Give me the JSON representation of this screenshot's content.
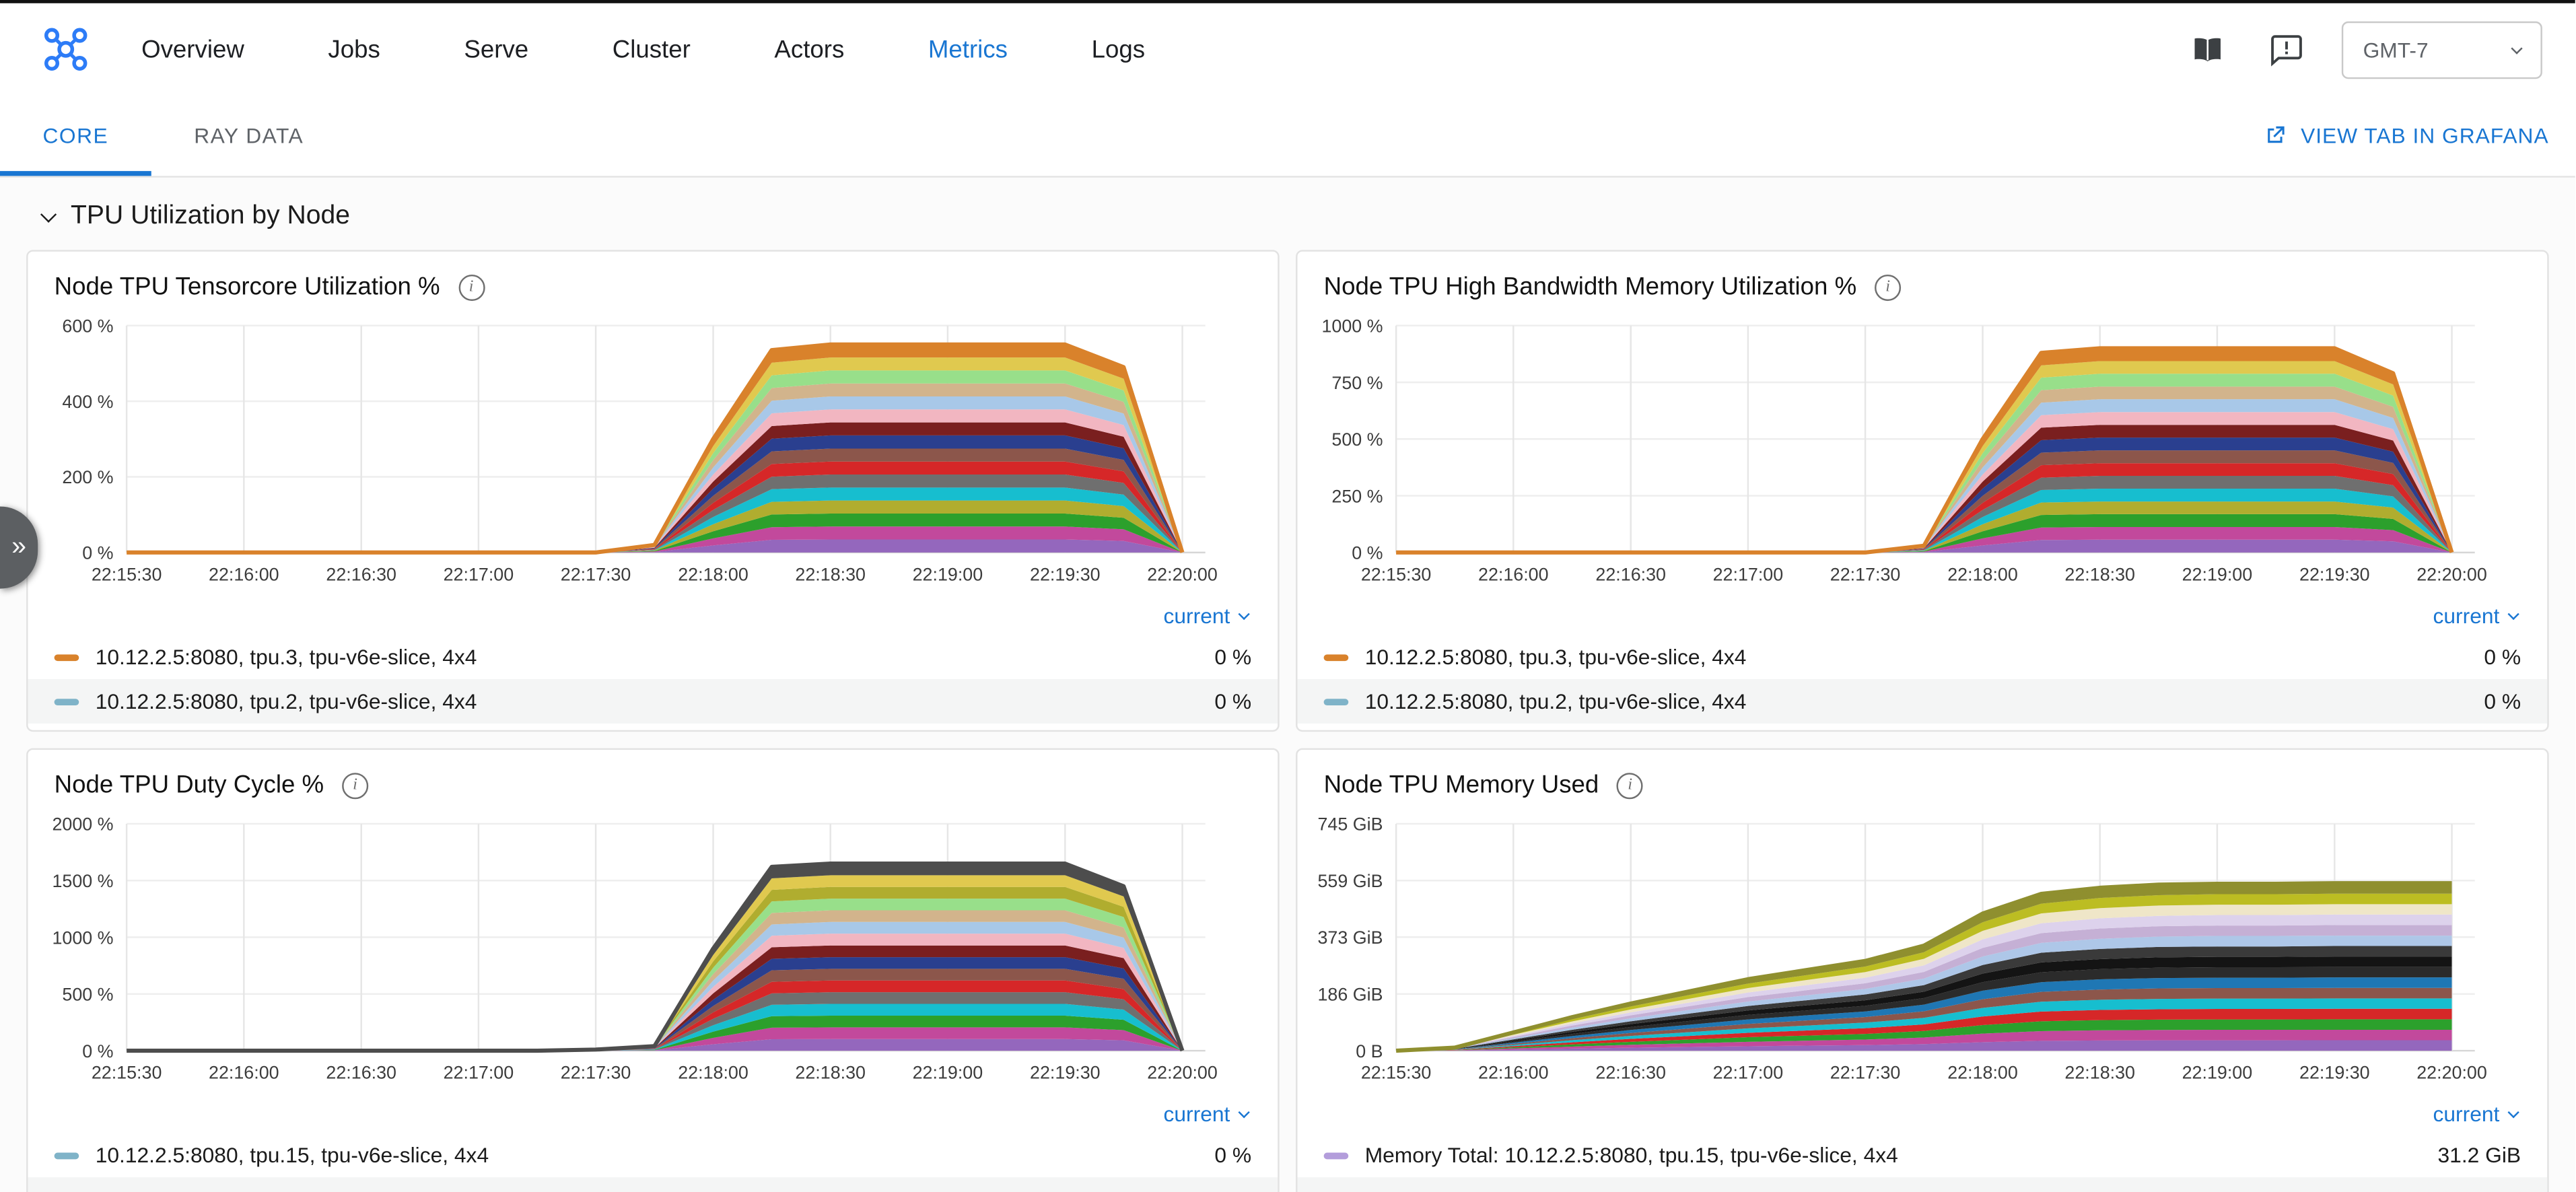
{
  "nav": {
    "items": [
      "Overview",
      "Jobs",
      "Serve",
      "Cluster",
      "Actors",
      "Metrics",
      "Logs"
    ],
    "active": "Metrics",
    "timezone": "GMT-7"
  },
  "tabs": {
    "core": "CORE",
    "ray_data": "RAY DATA",
    "grafana_link": "VIEW TAB IN GRAFANA"
  },
  "section": {
    "title": "TPU Utilization by Node"
  },
  "icons": {
    "info_glyph": "i",
    "drawer_glyph": "»"
  },
  "panels": [
    {
      "title": "Node TPU Tensorcore Utilization %",
      "legend_header": "current",
      "legend": [
        {
          "color": "#d9822b",
          "label": "10.12.2.5:8080, tpu.3, tpu-v6e-slice, 4x4",
          "value": "0 %"
        },
        {
          "color": "#7fb3c8",
          "label": "10.12.2.5:8080, tpu.2, tpu-v6e-slice, 4x4",
          "value": "0 %"
        }
      ]
    },
    {
      "title": "Node TPU High Bandwidth Memory Utilization %",
      "legend_header": "current",
      "legend": [
        {
          "color": "#d9822b",
          "label": "10.12.2.5:8080, tpu.3, tpu-v6e-slice, 4x4",
          "value": "0 %"
        },
        {
          "color": "#7fb3c8",
          "label": "10.12.2.5:8080, tpu.2, tpu-v6e-slice, 4x4",
          "value": "0 %"
        }
      ]
    },
    {
      "title": "Node TPU Duty Cycle %",
      "legend_header": "current",
      "legend": [
        {
          "color": "#7fb3c8",
          "label": "10.12.2.5:8080, tpu.15, tpu-v6e-slice, 4x4",
          "value": "0 %"
        }
      ]
    },
    {
      "title": "Node TPU Memory Used",
      "legend_header": "current",
      "legend": [
        {
          "color": "#b39ddb",
          "label": "Memory Total: 10.12.2.5:8080, tpu.15, tpu-v6e-slice, 4x4",
          "value": "31.2 GiB"
        }
      ]
    }
  ],
  "chart_data": [
    {
      "type": "area",
      "stacked": true,
      "title": "Node TPU Tensorcore Utilization %",
      "unit": "%",
      "x": [
        "22:15:30",
        "22:15:45",
        "22:16:00",
        "22:16:15",
        "22:16:30",
        "22:16:45",
        "22:17:00",
        "22:17:15",
        "22:17:30",
        "22:17:45",
        "22:18:00",
        "22:18:15",
        "22:18:30",
        "22:18:45",
        "22:19:00",
        "22:19:15",
        "22:19:30",
        "22:19:45",
        "22:20:00"
      ],
      "x_label_every": 2,
      "y_ticks": [
        {
          "v": 0,
          "label": "0 %"
        },
        {
          "v": 200,
          "label": "200 %"
        },
        {
          "v": 400,
          "label": "400 %"
        },
        {
          "v": 600,
          "label": "600 %"
        }
      ],
      "y_max": 600,
      "num_series": 16,
      "series_pattern": "10.12.2.5:8080, tpu.<N>, tpu-v6e-slice, 4x4 (N=0..15, equal stacked shares)",
      "totals": [
        0,
        0,
        0,
        0,
        0,
        0,
        0,
        0,
        0,
        20,
        300,
        535,
        550,
        550,
        550,
        550,
        550,
        490,
        0
      ],
      "palette": [
        "#9467bd",
        "#c2499c",
        "#2ca02c",
        "#b0ad2f",
        "#17becf",
        "#6f6f6f",
        "#d62728",
        "#8c564b",
        "#2a3f8f",
        "#7a1f1f",
        "#f2b6c1",
        "#a8c8e8",
        "#d2b48c",
        "#98df8a",
        "#e0c94f",
        "#d9822b"
      ]
    },
    {
      "type": "area",
      "stacked": true,
      "title": "Node TPU High Bandwidth Memory Utilization %",
      "unit": "%",
      "x": [
        "22:15:30",
        "22:15:45",
        "22:16:00",
        "22:16:15",
        "22:16:30",
        "22:16:45",
        "22:17:00",
        "22:17:15",
        "22:17:30",
        "22:17:45",
        "22:18:00",
        "22:18:15",
        "22:18:30",
        "22:18:45",
        "22:19:00",
        "22:19:15",
        "22:19:30",
        "22:19:45",
        "22:20:00"
      ],
      "x_label_every": 2,
      "y_ticks": [
        {
          "v": 0,
          "label": "0 %"
        },
        {
          "v": 250,
          "label": "250 %"
        },
        {
          "v": 500,
          "label": "500 %"
        },
        {
          "v": 750,
          "label": "750 %"
        },
        {
          "v": 1000,
          "label": "1000 %"
        }
      ],
      "y_max": 1000,
      "num_series": 16,
      "series_pattern": "10.12.2.5:8080, tpu.<N>, tpu-v6e-slice, 4x4 (N=0..15, equal stacked shares)",
      "totals": [
        0,
        0,
        0,
        0,
        0,
        0,
        0,
        0,
        0,
        30,
        500,
        880,
        900,
        900,
        900,
        900,
        900,
        790,
        0
      ],
      "palette": [
        "#9467bd",
        "#c2499c",
        "#2ca02c",
        "#b0ad2f",
        "#17becf",
        "#6f6f6f",
        "#d62728",
        "#8c564b",
        "#2a3f8f",
        "#7a1f1f",
        "#f2b6c1",
        "#a8c8e8",
        "#d2b48c",
        "#98df8a",
        "#e0c94f",
        "#d9822b"
      ]
    },
    {
      "type": "area",
      "stacked": true,
      "title": "Node TPU Duty Cycle %",
      "unit": "%",
      "x": [
        "22:15:30",
        "22:15:45",
        "22:16:00",
        "22:16:15",
        "22:16:30",
        "22:16:45",
        "22:17:00",
        "22:17:15",
        "22:17:30",
        "22:17:45",
        "22:18:00",
        "22:18:15",
        "22:18:30",
        "22:18:45",
        "22:19:00",
        "22:19:15",
        "22:19:30",
        "22:19:45",
        "22:20:00"
      ],
      "x_label_every": 2,
      "y_ticks": [
        {
          "v": 0,
          "label": "0 %"
        },
        {
          "v": 500,
          "label": "500 %"
        },
        {
          "v": 1000,
          "label": "1000 %"
        },
        {
          "v": 1500,
          "label": "1500 %"
        },
        {
          "v": 2000,
          "label": "2000 %"
        }
      ],
      "y_max": 2000,
      "num_series": 16,
      "series_pattern": "10.12.2.5:8080, tpu.<N>, tpu-v6e-slice, 4x4 (N=0..15, equal stacked shares)",
      "totals": [
        0,
        0,
        0,
        0,
        0,
        0,
        0,
        0,
        10,
        40,
        900,
        1620,
        1650,
        1650,
        1650,
        1650,
        1650,
        1450,
        0
      ],
      "palette": [
        "#9467bd",
        "#c2499c",
        "#2ca02c",
        "#17becf",
        "#6f6f6f",
        "#d62728",
        "#8c564b",
        "#2a3f8f",
        "#7a1f1f",
        "#f2b6c1",
        "#a8c8e8",
        "#d2b48c",
        "#98df8a",
        "#b0ad2f",
        "#e0c94f",
        "#4d4d4d"
      ]
    },
    {
      "type": "area",
      "stacked": true,
      "title": "Node TPU Memory Used",
      "unit": "GiB",
      "x": [
        "22:15:30",
        "22:15:45",
        "22:16:00",
        "22:16:15",
        "22:16:30",
        "22:16:45",
        "22:17:00",
        "22:17:15",
        "22:17:30",
        "22:17:45",
        "22:18:00",
        "22:18:15",
        "22:18:30",
        "22:18:45",
        "22:19:00",
        "22:19:15",
        "22:19:30",
        "22:19:45",
        "22:20:00"
      ],
      "x_label_every": 2,
      "y_ticks": [
        {
          "v": 0,
          "label": "0 B"
        },
        {
          "v": 186,
          "label": "186 GiB"
        },
        {
          "v": 373,
          "label": "373 GiB"
        },
        {
          "v": 559,
          "label": "559 GiB"
        },
        {
          "v": 745,
          "label": "745 GiB"
        }
      ],
      "y_max": 745,
      "num_series": 16,
      "series_pattern": "Memory Used: 10.12.2.5:8080, tpu.<N>, tpu-v6e-slice, 4x4 (N=0..15, equal stacked shares)",
      "totals": [
        0,
        10,
        60,
        110,
        155,
        195,
        235,
        265,
        295,
        345,
        450,
        515,
        535,
        545,
        548,
        548,
        550,
        550,
        550
      ],
      "palette": [
        "#9467bd",
        "#c2499c",
        "#2ca02c",
        "#d62728",
        "#17becf",
        "#8c564b",
        "#1f77b4",
        "#2b2b2b",
        "#141414",
        "#3a3a3a",
        "#aec7e8",
        "#c5b0d5",
        "#ddd2ec",
        "#efe6c8",
        "#bcbd22",
        "#8f8f2f"
      ]
    }
  ]
}
